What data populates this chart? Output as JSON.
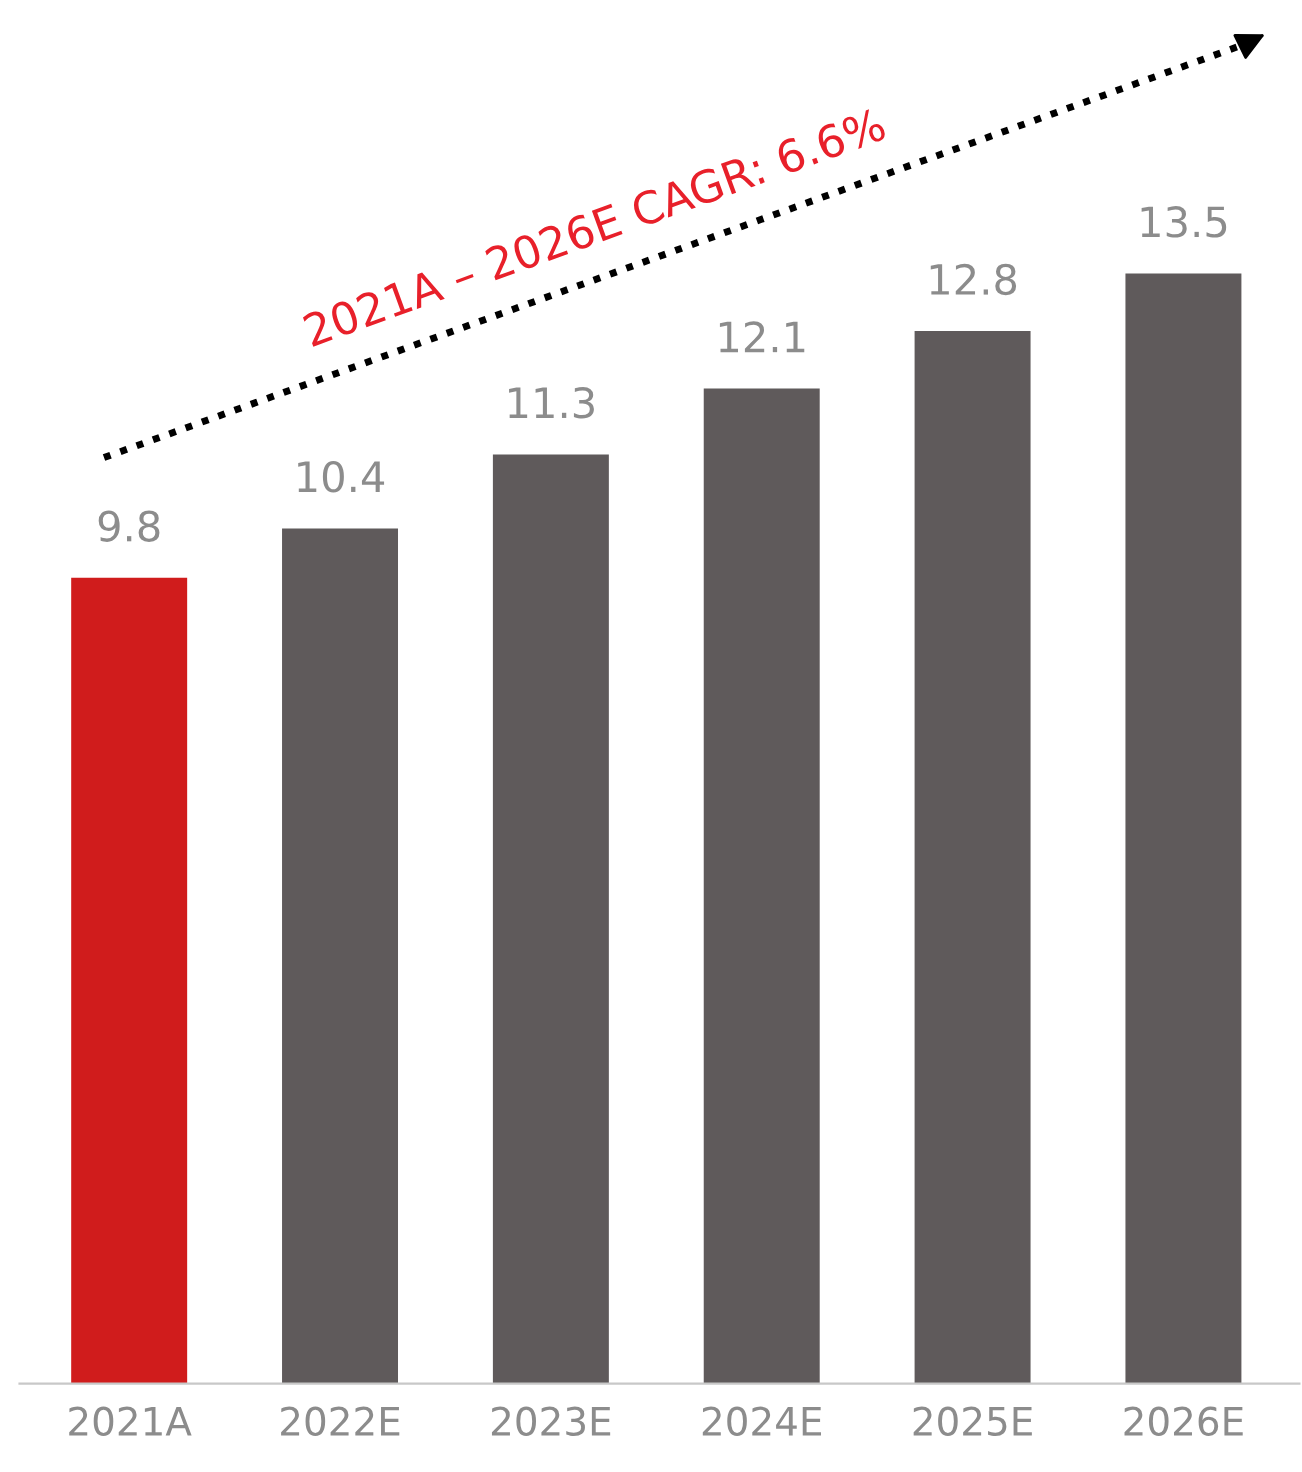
{
  "chart_data": {
    "type": "bar",
    "categories": [
      "2021A",
      "2022E",
      "2023E",
      "2024E",
      "2025E",
      "2026E"
    ],
    "values": [
      9.8,
      10.4,
      11.3,
      12.1,
      12.8,
      13.5
    ],
    "colors": [
      "#d01c1c",
      "#5f5a5b",
      "#5f5a5b",
      "#5f5a5b",
      "#5f5a5b",
      "#5f5a5b"
    ],
    "data_labels": true,
    "tick_labels": "x",
    "grid": false,
    "legend": false,
    "annotations": [
      "2021A – 2026E CAGR: 6.6%"
    ]
  }
}
